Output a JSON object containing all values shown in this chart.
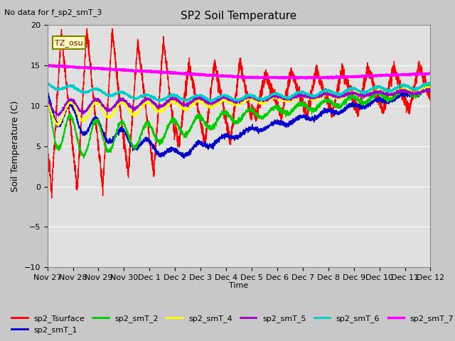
{
  "title": "SP2 Soil Temperature",
  "ylabel": "Soil Temperature (C)",
  "xlabel": "Time",
  "note": "No data for f_sp2_smT_3",
  "tz_label": "TZ_osu",
  "ylim": [
    -10,
    20
  ],
  "yticks": [
    -10,
    -5,
    0,
    5,
    10,
    15,
    20
  ],
  "tick_labels": [
    "Nov 27",
    "Nov 28",
    "Nov 29",
    "Nov 30",
    "Dec 1",
    "Dec 2",
    "Dec 3",
    "Dec 4",
    "Dec 5",
    "Dec 6",
    "Dec 7",
    "Dec 8",
    "Dec 9",
    "Dec 10",
    "Dec 11",
    "Dec 12"
  ],
  "series_colors": {
    "sp2_Tsurface": "#FF0000",
    "sp2_smT_1": "#0000CC",
    "sp2_smT_2": "#00CC00",
    "sp2_smT_4": "#FFFF00",
    "sp2_smT_5": "#9900CC",
    "sp2_smT_6": "#00CCCC",
    "sp2_smT_7": "#FF00FF"
  },
  "series_lw": {
    "sp2_Tsurface": 1.0,
    "sp2_smT_1": 1.0,
    "sp2_smT_2": 1.0,
    "sp2_smT_4": 1.0,
    "sp2_smT_5": 1.0,
    "sp2_smT_6": 1.2,
    "sp2_smT_7": 1.8
  },
  "background_color": "#C8C8C8",
  "plot_bg_color": "#E0E0E0",
  "grid_color": "#FFFFFF",
  "total_days": 15,
  "figsize": [
    6.4,
    4.8
  ],
  "dpi": 100
}
